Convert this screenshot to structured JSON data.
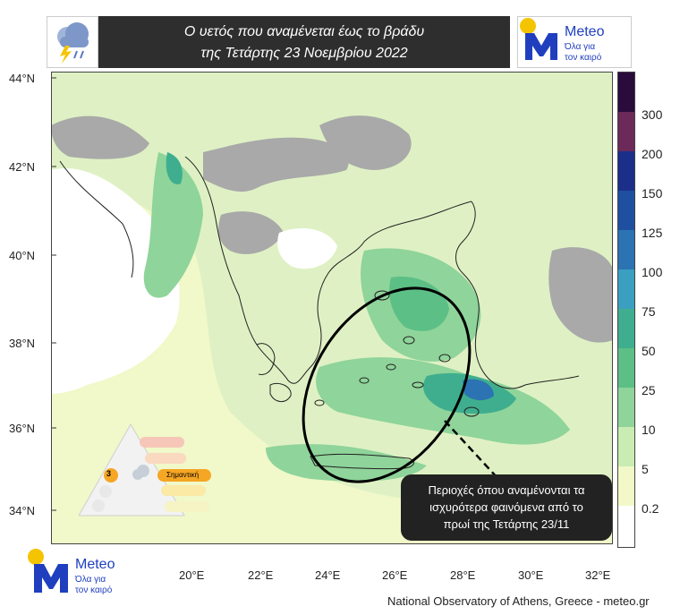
{
  "title": {
    "line1": "Ο υετός που αναμένεται έως το βράδυ",
    "line2": "της Τετάρτης 23 Νοεμβρίου 2022"
  },
  "logo": {
    "brand": "Meteo",
    "tagline1": "Όλα για",
    "tagline2": "τον καιρό",
    "brand_color": "#1f3fbf",
    "sun_color": "#f5c400"
  },
  "weather_icon": "rain-lightning-cloud-icon",
  "latitudes": [
    "44°N",
    "42°N",
    "40°N",
    "38°N",
    "36°N",
    "34°N"
  ],
  "longitudes": [
    "20°E",
    "22°E",
    "24°E",
    "26°E",
    "28°E",
    "30°E",
    "32°E"
  ],
  "colorbar": {
    "labels": [
      "300",
      "200",
      "150",
      "125",
      "100",
      "75",
      "50",
      "25",
      "10",
      "5",
      "0.2"
    ],
    "colors": [
      "#2a0c3c",
      "#6b2a5a",
      "#1b2f8a",
      "#1f4fa0",
      "#2b73b3",
      "#3a9fc0",
      "#3fae8e",
      "#5cbf86",
      "#8fd49a",
      "#c9ecb3",
      "#f2f8c8",
      "#ffffff"
    ]
  },
  "callout": {
    "line1": "Περιοχές όπου αναμένονται τα",
    "line2": "ισχυρότερα φαινόμενα από το",
    "line3": "πρωί της Τετάρτης 23/11"
  },
  "scale_panel": {
    "level": "3",
    "label": "Σημαντική"
  },
  "footer": "National Observatory of Athens, Greece - meteo.gr"
}
